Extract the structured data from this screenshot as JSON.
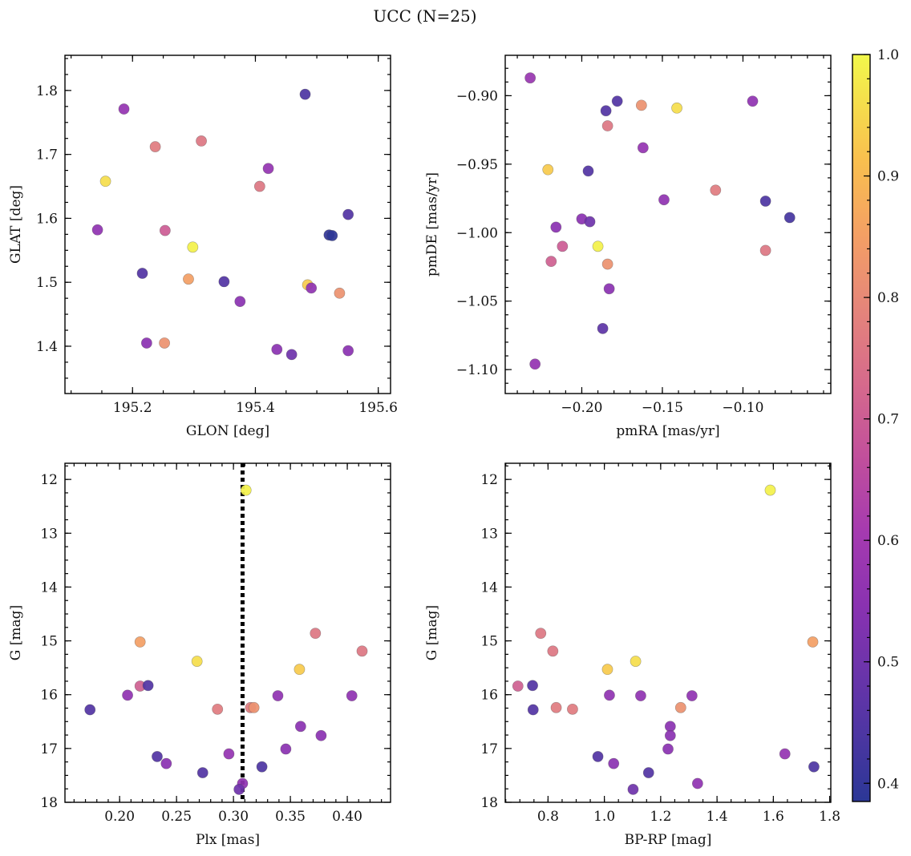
{
  "figure": {
    "title": "UCC (N=25)"
  },
  "colorbar": {
    "range": [
      0.385,
      1.0
    ],
    "ticks": [
      0.4,
      0.5,
      0.6,
      0.7,
      0.8,
      0.9,
      1.0
    ],
    "tick_labels": [
      "0.4",
      "0.5",
      "0.6",
      "0.7",
      "0.8",
      "0.9",
      "1.0"
    ],
    "colormap": "plasma"
  },
  "chart_data": [
    {
      "type": "scatter",
      "name": "glon-glat",
      "xlabel": "GLON [deg]",
      "ylabel": "GLAT [deg]",
      "xlim": [
        195.09,
        195.62
      ],
      "ylim": [
        1.326,
        1.855
      ],
      "xticks": [
        195.2,
        195.4,
        195.6
      ],
      "xtick_labels": [
        "195.2",
        "195.4",
        "195.6"
      ],
      "yticks": [
        1.4,
        1.5,
        1.6,
        1.7,
        1.8
      ],
      "ytick_labels": [
        "1.4",
        "1.5",
        "1.6",
        "1.7",
        "1.8"
      ],
      "points": [
        {
          "x": 195.481,
          "y": 1.794,
          "c": 0.44
        },
        {
          "x": 195.186,
          "y": 1.771,
          "c": 0.57
        },
        {
          "x": 195.312,
          "y": 1.721,
          "c": 0.76
        },
        {
          "x": 195.237,
          "y": 1.712,
          "c": 0.77
        },
        {
          "x": 195.421,
          "y": 1.678,
          "c": 0.57
        },
        {
          "x": 195.156,
          "y": 1.658,
          "c": 0.96
        },
        {
          "x": 195.407,
          "y": 1.65,
          "c": 0.76
        },
        {
          "x": 195.551,
          "y": 1.606,
          "c": 0.45
        },
        {
          "x": 195.143,
          "y": 1.582,
          "c": 0.56
        },
        {
          "x": 195.253,
          "y": 1.581,
          "c": 0.7
        },
        {
          "x": 195.52,
          "y": 1.574,
          "c": 0.4
        },
        {
          "x": 195.525,
          "y": 1.573,
          "c": 0.39
        },
        {
          "x": 195.298,
          "y": 1.555,
          "c": 0.99
        },
        {
          "x": 195.216,
          "y": 1.514,
          "c": 0.45
        },
        {
          "x": 195.291,
          "y": 1.505,
          "c": 0.85
        },
        {
          "x": 195.349,
          "y": 1.501,
          "c": 0.45
        },
        {
          "x": 195.485,
          "y": 1.496,
          "c": 0.93
        },
        {
          "x": 195.491,
          "y": 1.491,
          "c": 0.56
        },
        {
          "x": 195.537,
          "y": 1.483,
          "c": 0.82
        },
        {
          "x": 195.375,
          "y": 1.47,
          "c": 0.55
        },
        {
          "x": 195.223,
          "y": 1.405,
          "c": 0.55
        },
        {
          "x": 195.252,
          "y": 1.405,
          "c": 0.82
        },
        {
          "x": 195.435,
          "y": 1.395,
          "c": 0.55
        },
        {
          "x": 195.551,
          "y": 1.393,
          "c": 0.55
        },
        {
          "x": 195.459,
          "y": 1.387,
          "c": 0.5
        }
      ]
    },
    {
      "type": "scatter",
      "name": "pmra-pmde",
      "xlabel": "pmRA [mas/yr]",
      "ylabel": "pmDE [mas/yr]",
      "xlim": [
        -0.2475,
        -0.0455
      ],
      "ylim": [
        -1.1175,
        -0.8705
      ],
      "xticks": [
        -0.2,
        -0.15,
        -0.1
      ],
      "xtick_labels": [
        "−0.20",
        "−0.15",
        "−0.10"
      ],
      "yticks": [
        -0.9,
        -0.95,
        -1.0,
        -1.05,
        -1.1
      ],
      "ytick_labels": [
        "−0.90",
        "−0.95",
        "−1.00",
        "−1.05",
        "−1.10"
      ],
      "points": [
        {
          "x": -0.232,
          "y": -0.887,
          "c": 0.58
        },
        {
          "x": -0.178,
          "y": -0.904,
          "c": 0.45
        },
        {
          "x": -0.094,
          "y": -0.904,
          "c": 0.56
        },
        {
          "x": -0.163,
          "y": -0.907,
          "c": 0.82
        },
        {
          "x": -0.141,
          "y": -0.909,
          "c": 0.96
        },
        {
          "x": -0.185,
          "y": -0.911,
          "c": 0.45
        },
        {
          "x": -0.184,
          "y": -0.922,
          "c": 0.76
        },
        {
          "x": -0.162,
          "y": -0.938,
          "c": 0.57
        },
        {
          "x": -0.221,
          "y": -0.954,
          "c": 0.93
        },
        {
          "x": -0.196,
          "y": -0.955,
          "c": 0.45
        },
        {
          "x": -0.117,
          "y": -0.969,
          "c": 0.77
        },
        {
          "x": -0.149,
          "y": -0.976,
          "c": 0.56
        },
        {
          "x": -0.086,
          "y": -0.977,
          "c": 0.44
        },
        {
          "x": -0.071,
          "y": -0.989,
          "c": 0.43
        },
        {
          "x": -0.2,
          "y": -0.99,
          "c": 0.55
        },
        {
          "x": -0.195,
          "y": -0.992,
          "c": 0.5
        },
        {
          "x": -0.216,
          "y": -0.996,
          "c": 0.55
        },
        {
          "x": -0.19,
          "y": -1.01,
          "c": 0.99
        },
        {
          "x": -0.212,
          "y": -1.01,
          "c": 0.7
        },
        {
          "x": -0.086,
          "y": -1.013,
          "c": 0.76
        },
        {
          "x": -0.219,
          "y": -1.021,
          "c": 0.71
        },
        {
          "x": -0.184,
          "y": -1.023,
          "c": 0.82
        },
        {
          "x": -0.183,
          "y": -1.041,
          "c": 0.55
        },
        {
          "x": -0.187,
          "y": -1.07,
          "c": 0.47
        },
        {
          "x": -0.229,
          "y": -1.096,
          "c": 0.57
        }
      ]
    },
    {
      "type": "scatter",
      "name": "plx-g",
      "xlabel": "Plx [mas]",
      "ylabel": "G [mag]",
      "xlim": [
        0.152,
        0.438
      ],
      "ylim": [
        18.0,
        11.7
      ],
      "y_inverted": true,
      "vline": 0.308,
      "xticks": [
        0.2,
        0.25,
        0.3,
        0.35,
        0.4
      ],
      "xtick_labels": [
        "0.20",
        "0.25",
        "0.30",
        "0.35",
        "0.40"
      ],
      "yticks": [
        12,
        13,
        14,
        15,
        16,
        17,
        18
      ],
      "ytick_labels": [
        "12",
        "13",
        "14",
        "15",
        "16",
        "17",
        "18"
      ],
      "points": [
        {
          "x": 0.311,
          "y": 12.2,
          "c": 0.99
        },
        {
          "x": 0.372,
          "y": 14.86,
          "c": 0.76
        },
        {
          "x": 0.218,
          "y": 15.02,
          "c": 0.85
        },
        {
          "x": 0.413,
          "y": 15.19,
          "c": 0.76
        },
        {
          "x": 0.268,
          "y": 15.38,
          "c": 0.96
        },
        {
          "x": 0.358,
          "y": 15.53,
          "c": 0.93
        },
        {
          "x": 0.218,
          "y": 15.84,
          "c": 0.71
        },
        {
          "x": 0.225,
          "y": 15.83,
          "c": 0.45
        },
        {
          "x": 0.207,
          "y": 16.01,
          "c": 0.56
        },
        {
          "x": 0.339,
          "y": 16.02,
          "c": 0.56
        },
        {
          "x": 0.404,
          "y": 16.02,
          "c": 0.56
        },
        {
          "x": 0.315,
          "y": 16.24,
          "c": 0.77
        },
        {
          "x": 0.318,
          "y": 16.24,
          "c": 0.82
        },
        {
          "x": 0.174,
          "y": 16.28,
          "c": 0.45
        },
        {
          "x": 0.286,
          "y": 16.27,
          "c": 0.77
        },
        {
          "x": 0.359,
          "y": 16.59,
          "c": 0.55
        },
        {
          "x": 0.377,
          "y": 16.76,
          "c": 0.55
        },
        {
          "x": 0.346,
          "y": 17.01,
          "c": 0.55
        },
        {
          "x": 0.296,
          "y": 17.1,
          "c": 0.57
        },
        {
          "x": 0.233,
          "y": 17.15,
          "c": 0.45
        },
        {
          "x": 0.241,
          "y": 17.28,
          "c": 0.55
        },
        {
          "x": 0.325,
          "y": 17.34,
          "c": 0.44
        },
        {
          "x": 0.273,
          "y": 17.45,
          "c": 0.45
        },
        {
          "x": 0.308,
          "y": 17.65,
          "c": 0.56
        },
        {
          "x": 0.305,
          "y": 17.76,
          "c": 0.5
        }
      ]
    },
    {
      "type": "scatter",
      "name": "bprp-g",
      "xlabel": "BP-RP [mag]",
      "ylabel": "G [mag]",
      "xlim": [
        0.648,
        1.804
      ],
      "ylim": [
        18.0,
        11.7
      ],
      "y_inverted": true,
      "xticks": [
        0.8,
        1.0,
        1.2,
        1.4,
        1.6,
        1.8
      ],
      "xtick_labels": [
        "0.8",
        "1.0",
        "1.2",
        "1.4",
        "1.6",
        "1.8"
      ],
      "yticks": [
        12,
        13,
        14,
        15,
        16,
        17,
        18
      ],
      "ytick_labels": [
        "12",
        "13",
        "14",
        "15",
        "16",
        "17",
        "18"
      ],
      "points": [
        {
          "x": 1.589,
          "y": 12.2,
          "c": 0.99
        },
        {
          "x": 0.774,
          "y": 14.86,
          "c": 0.76
        },
        {
          "x": 1.74,
          "y": 15.02,
          "c": 0.85
        },
        {
          "x": 0.817,
          "y": 15.19,
          "c": 0.76
        },
        {
          "x": 1.111,
          "y": 15.38,
          "c": 0.96
        },
        {
          "x": 1.011,
          "y": 15.53,
          "c": 0.93
        },
        {
          "x": 0.693,
          "y": 15.84,
          "c": 0.71
        },
        {
          "x": 0.745,
          "y": 15.83,
          "c": 0.45
        },
        {
          "x": 1.018,
          "y": 16.01,
          "c": 0.56
        },
        {
          "x": 1.129,
          "y": 16.02,
          "c": 0.56
        },
        {
          "x": 1.311,
          "y": 16.02,
          "c": 0.56
        },
        {
          "x": 0.829,
          "y": 16.24,
          "c": 0.77
        },
        {
          "x": 1.271,
          "y": 16.24,
          "c": 0.82
        },
        {
          "x": 0.747,
          "y": 16.28,
          "c": 0.45
        },
        {
          "x": 0.887,
          "y": 16.27,
          "c": 0.77
        },
        {
          "x": 1.234,
          "y": 16.59,
          "c": 0.55
        },
        {
          "x": 1.234,
          "y": 16.76,
          "c": 0.55
        },
        {
          "x": 1.226,
          "y": 17.01,
          "c": 0.55
        },
        {
          "x": 1.641,
          "y": 17.1,
          "c": 0.57
        },
        {
          "x": 0.977,
          "y": 17.15,
          "c": 0.45
        },
        {
          "x": 1.033,
          "y": 17.28,
          "c": 0.55
        },
        {
          "x": 1.744,
          "y": 17.34,
          "c": 0.44
        },
        {
          "x": 1.157,
          "y": 17.45,
          "c": 0.45
        },
        {
          "x": 1.331,
          "y": 17.65,
          "c": 0.56
        },
        {
          "x": 1.102,
          "y": 17.76,
          "c": 0.5
        }
      ]
    }
  ]
}
